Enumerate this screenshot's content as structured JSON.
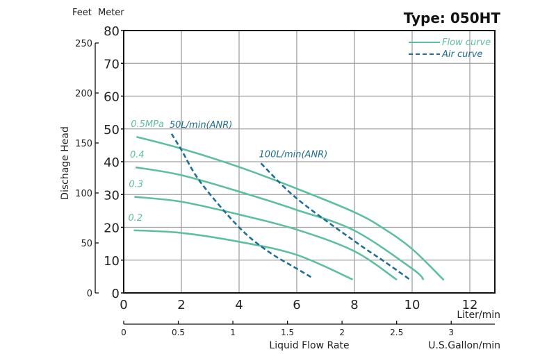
{
  "chart_data": {
    "type": "line",
    "title": "Type: 050HT",
    "xlabel": "Liquid Flow Rate",
    "x_unit": "Liter/min",
    "x2_unit": "U.S.Gallon/min",
    "ylabel": "Dischage Head",
    "y_units": [
      "Feet",
      "Meter"
    ],
    "xlim": [
      0,
      12.9
    ],
    "ylim": [
      0,
      80
    ],
    "xticks": [
      0,
      2,
      4,
      6,
      8,
      10,
      12
    ],
    "yticks": [
      0,
      10,
      20,
      30,
      40,
      50,
      60,
      70,
      80
    ],
    "x2ticks": [
      "0",
      "0.5",
      "1",
      "1.5",
      "2",
      "2.5",
      "3"
    ],
    "x2tick_values": [
      0,
      0.5,
      1,
      1.5,
      2,
      2.5,
      3
    ],
    "feet_ticks": [
      "0",
      "50",
      "100",
      "150",
      "200",
      "250"
    ],
    "feet_tick_values": [
      0,
      50,
      100,
      150,
      200,
      250
    ],
    "grid": true,
    "legend": {
      "position": "top-right",
      "entries": [
        "Flow curve",
        "Air curve"
      ]
    },
    "colors": {
      "flow": "#5dbf9f",
      "air": "#1f6e94",
      "grid": "#a0a0a0"
    },
    "flow_series": [
      {
        "name": "0.5MPa",
        "x": [
          0.44,
          2,
          4,
          6,
          8,
          9,
          10,
          11.1
        ],
        "y": [
          47.6,
          44,
          38.4,
          31.8,
          24.6,
          19.7,
          13.4,
          3.9
        ]
      },
      {
        "name": "0.4",
        "x": [
          0.41,
          2,
          4,
          6,
          8,
          10,
          10.4
        ],
        "y": [
          38.3,
          35.9,
          30.9,
          25.3,
          19,
          7.4,
          4
        ]
      },
      {
        "name": "0.3",
        "x": [
          0.37,
          2,
          4,
          6,
          8,
          9.47
        ],
        "y": [
          29.3,
          27.8,
          23.9,
          19.3,
          12.7,
          4
        ]
      },
      {
        "name": "0.2",
        "x": [
          0.35,
          2,
          4,
          6,
          7.94
        ],
        "y": [
          19.1,
          18.3,
          15.6,
          11.6,
          4.1
        ]
      }
    ],
    "air_series": [
      {
        "name": "50L/min(ANR)",
        "x": [
          1.66,
          2,
          2.66,
          4,
          5,
          6,
          6.54
        ],
        "y": [
          48.5,
          43.6,
          33.8,
          20,
          12.7,
          7.4,
          4.6
        ]
      },
      {
        "name": "100L/min(ANR)",
        "x": [
          4.76,
          6,
          8,
          9.05,
          9.95
        ],
        "y": [
          39.5,
          28.8,
          15.8,
          9.5,
          3.9
        ]
      }
    ]
  }
}
